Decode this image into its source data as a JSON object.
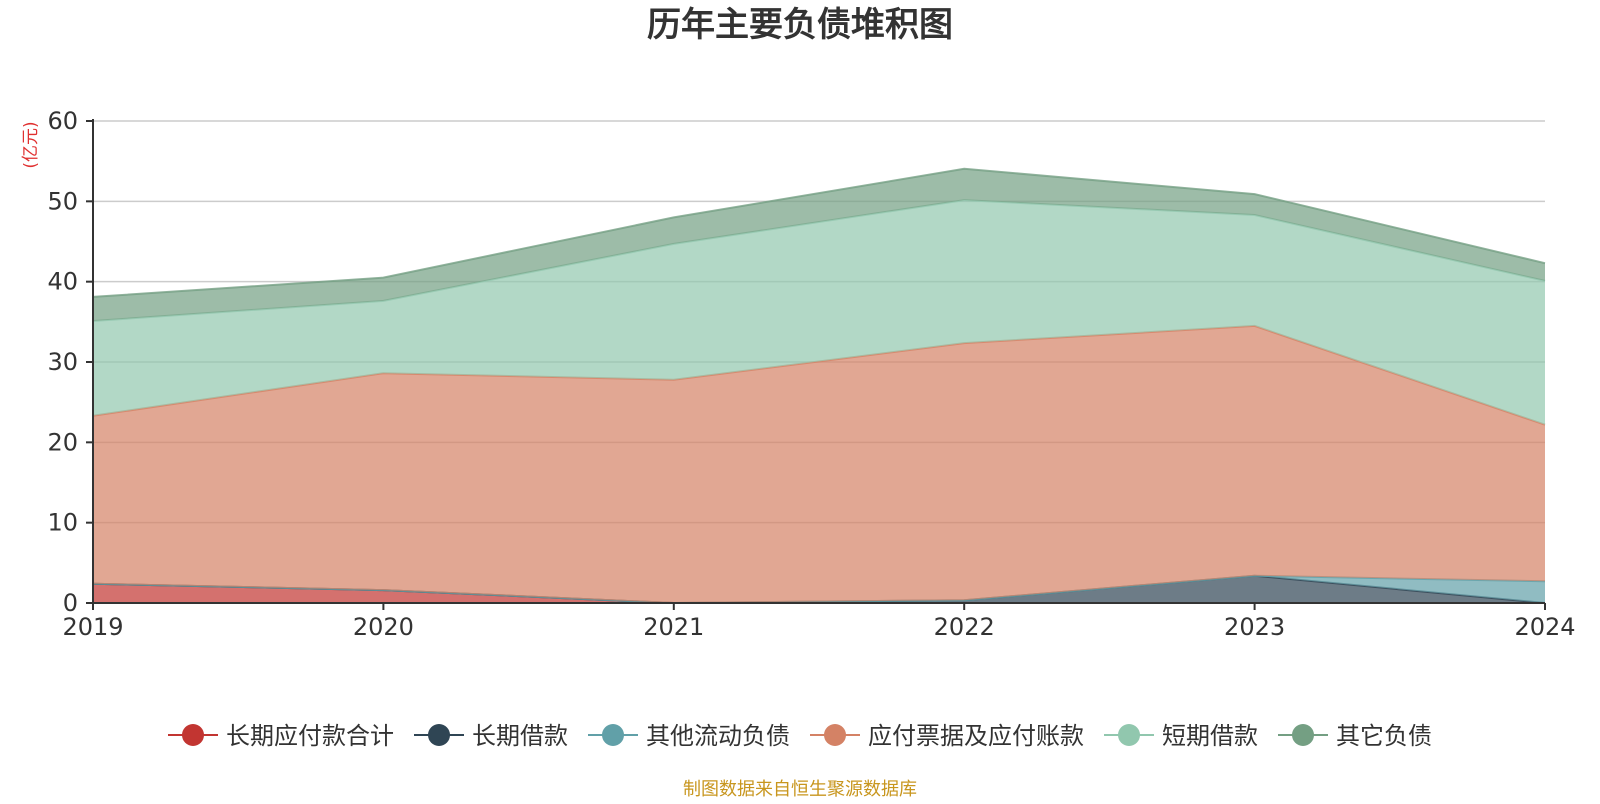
{
  "chart_data": {
    "type": "area",
    "stacked": true,
    "title": "历年主要负债堆积图",
    "unit_label": "(亿元)",
    "x": [
      "2019",
      "2020",
      "2021",
      "2022",
      "2023",
      "2024"
    ],
    "ylim": [
      0,
      60
    ],
    "yticks": [
      0,
      10,
      20,
      30,
      40,
      50,
      60
    ],
    "grid": true,
    "legend_position": "bottom",
    "series": [
      {
        "name": "长期应付款合计",
        "color": "#c23531",
        "values": [
          2.4,
          1.6,
          0.0,
          0.0,
          0.0,
          0.0
        ]
      },
      {
        "name": "长期借款",
        "color": "#2f4554",
        "values": [
          0.0,
          0.0,
          0.0,
          0.35,
          3.4,
          0.0
        ]
      },
      {
        "name": "其他流动负债",
        "color": "#61a0a8",
        "values": [
          0.0,
          0.0,
          0.0,
          0.0,
          0.0,
          2.7
        ]
      },
      {
        "name": "应付票据及应付账款",
        "color": "#d48265",
        "values": [
          20.9,
          27.0,
          27.8,
          32.0,
          31.1,
          19.5
        ]
      },
      {
        "name": "短期借款",
        "color": "#91c7ae",
        "values": [
          11.8,
          9.0,
          16.9,
          17.8,
          13.8,
          17.9
        ]
      },
      {
        "name": "其它负债",
        "color": "#749f83",
        "values": [
          3.0,
          2.9,
          3.3,
          3.9,
          2.6,
          2.2
        ]
      }
    ],
    "source": "制图数据来自恒生聚源数据库"
  }
}
